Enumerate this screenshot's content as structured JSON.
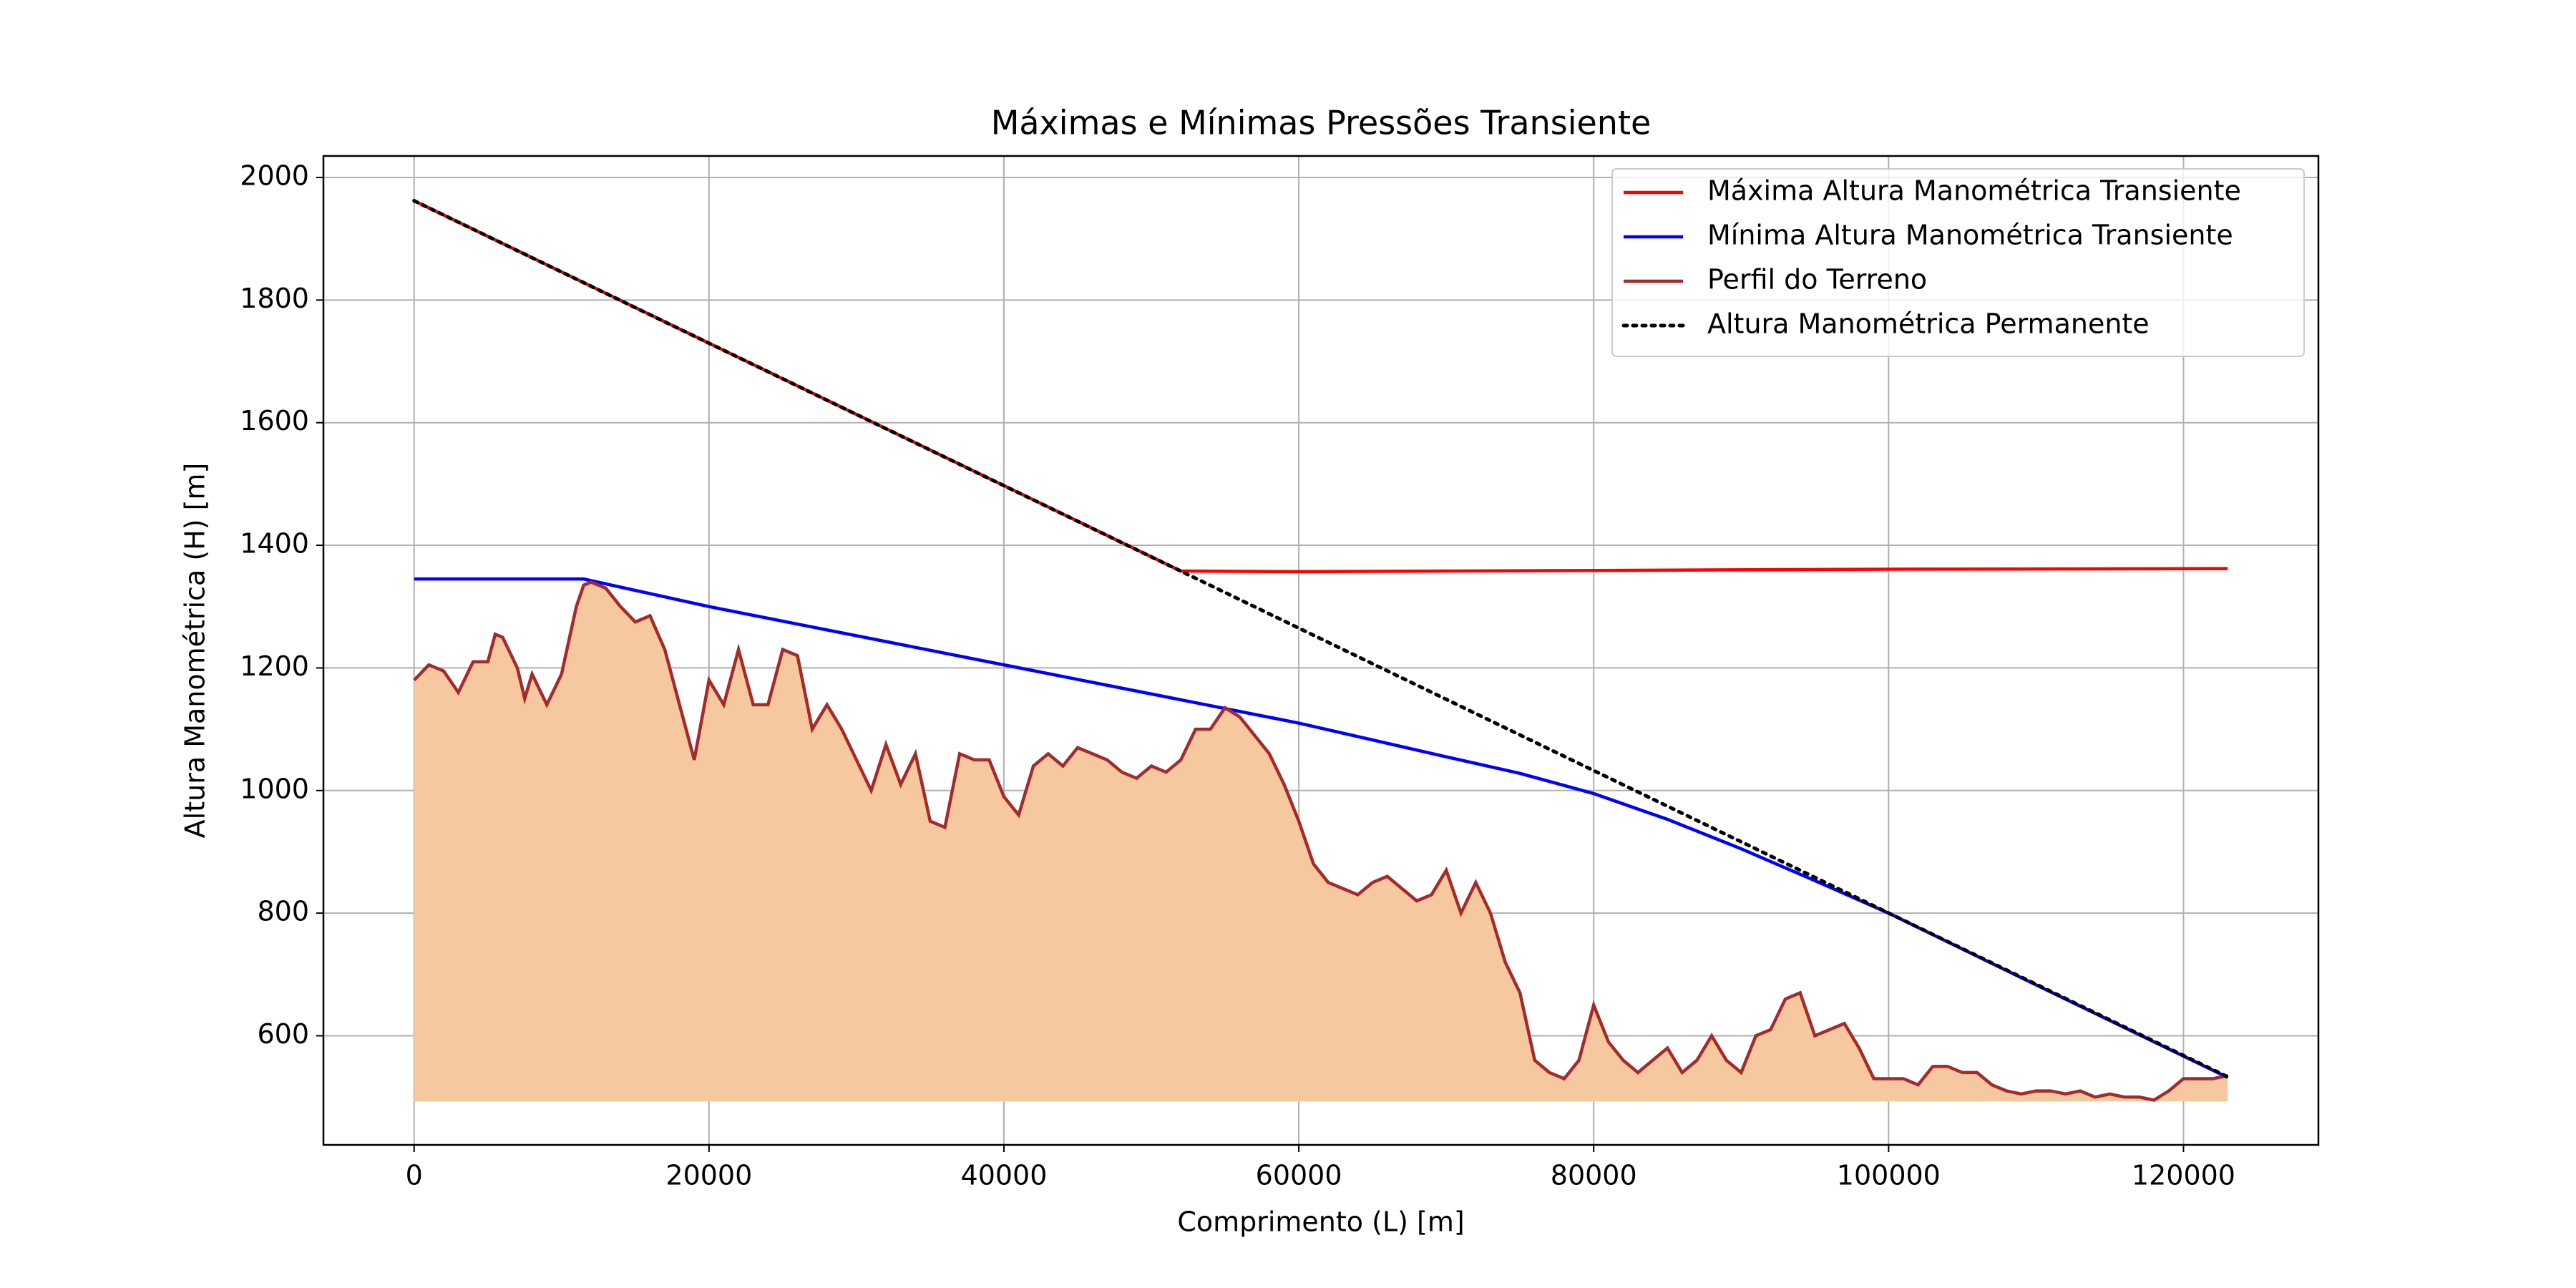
{
  "chart_data": {
    "type": "line",
    "title": "Máximas e Mínimas Pressões Transiente",
    "xlabel": "Comprimento (L) [m]",
    "ylabel": "Altura Manométrica (H) [m]",
    "xlim": [
      -6150,
      129150
    ],
    "xticks": [
      0,
      20000,
      40000,
      60000,
      80000,
      100000,
      120000
    ],
    "ylim": [
      422,
      2035
    ],
    "yticks": [
      600,
      800,
      1000,
      1200,
      1400,
      1600,
      1800,
      2000
    ],
    "grid": true,
    "legend": "upper right",
    "series": [
      {
        "name": "Máxima Altura Manométrica Transiente",
        "color": "#ff0000",
        "style": "solid",
        "x": [
          0,
          52000,
          60000,
          80000,
          100000,
          123000
        ],
        "values": [
          1962,
          1358,
          1357,
          1359,
          1361,
          1362
        ]
      },
      {
        "name": "Mínima Altura Manométrica Transiente",
        "color": "#0000ff",
        "style": "solid",
        "x": [
          0,
          11500,
          20000,
          40000,
          60000,
          70000,
          75000,
          80000,
          85000,
          90000,
          95000,
          100000,
          110000,
          123000
        ],
        "values": [
          1345,
          1345,
          1300,
          1205,
          1110,
          1055,
          1028,
          995,
          953,
          905,
          853,
          800,
          683,
          532
        ]
      },
      {
        "name": "Perfil do Terreno",
        "color": "#a52a2a",
        "style": "solid",
        "fill": "#f6c8a0",
        "fill_to": 493,
        "x": [
          0,
          1000,
          2000,
          3000,
          4000,
          5000,
          5500,
          6000,
          7000,
          7500,
          8000,
          9000,
          10000,
          11000,
          11500,
          12000,
          13000,
          14000,
          15000,
          16000,
          17000,
          18000,
          19000,
          20000,
          21000,
          22000,
          23000,
          24000,
          25000,
          26000,
          27000,
          28000,
          29000,
          30000,
          31000,
          32000,
          33000,
          34000,
          35000,
          36000,
          37000,
          38000,
          39000,
          40000,
          41000,
          42000,
          43000,
          44000,
          45000,
          46000,
          47000,
          48000,
          49000,
          50000,
          51000,
          52000,
          53000,
          54000,
          55000,
          56000,
          57000,
          58000,
          59000,
          60000,
          61000,
          62000,
          63000,
          64000,
          65000,
          66000,
          67000,
          68000,
          69000,
          70000,
          71000,
          72000,
          73000,
          74000,
          75000,
          76000,
          77000,
          78000,
          79000,
          80000,
          81000,
          82000,
          83000,
          84000,
          85000,
          86000,
          87000,
          88000,
          89000,
          90000,
          91000,
          92000,
          93000,
          94000,
          95000,
          96000,
          97000,
          98000,
          99000,
          100000,
          101000,
          102000,
          103000,
          104000,
          105000,
          106000,
          107000,
          108000,
          109000,
          110000,
          111000,
          112000,
          113000,
          114000,
          115000,
          116000,
          117000,
          118000,
          119000,
          120000,
          121000,
          122000,
          123000
        ],
        "values": [
          1180,
          1205,
          1195,
          1160,
          1210,
          1210,
          1255,
          1250,
          1200,
          1150,
          1190,
          1140,
          1190,
          1300,
          1335,
          1340,
          1330,
          1300,
          1275,
          1285,
          1230,
          1140,
          1050,
          1180,
          1140,
          1230,
          1140,
          1140,
          1230,
          1220,
          1100,
          1140,
          1100,
          1050,
          1000,
          1075,
          1010,
          1060,
          950,
          940,
          1060,
          1050,
          1050,
          990,
          960,
          1040,
          1060,
          1040,
          1070,
          1060,
          1050,
          1030,
          1020,
          1040,
          1030,
          1050,
          1100,
          1100,
          1135,
          1120,
          1090,
          1060,
          1010,
          950,
          880,
          850,
          840,
          830,
          850,
          860,
          840,
          820,
          830,
          870,
          800,
          850,
          800,
          720,
          670,
          560,
          540,
          530,
          560,
          650,
          590,
          560,
          540,
          560,
          580,
          540,
          560,
          600,
          560,
          540,
          600,
          610,
          660,
          670,
          600,
          610,
          620,
          580,
          530,
          530,
          530,
          520,
          550,
          550,
          540,
          540,
          520,
          510,
          505,
          510,
          510,
          505,
          510,
          500,
          505,
          500,
          500,
          495,
          510,
          530,
          530,
          530,
          535
        ]
      },
      {
        "name": "Altura Manométrica Permanente",
        "color": "#000000",
        "style": "dotted",
        "x": [
          0,
          123000
        ],
        "values": [
          1962,
          533
        ]
      }
    ]
  }
}
